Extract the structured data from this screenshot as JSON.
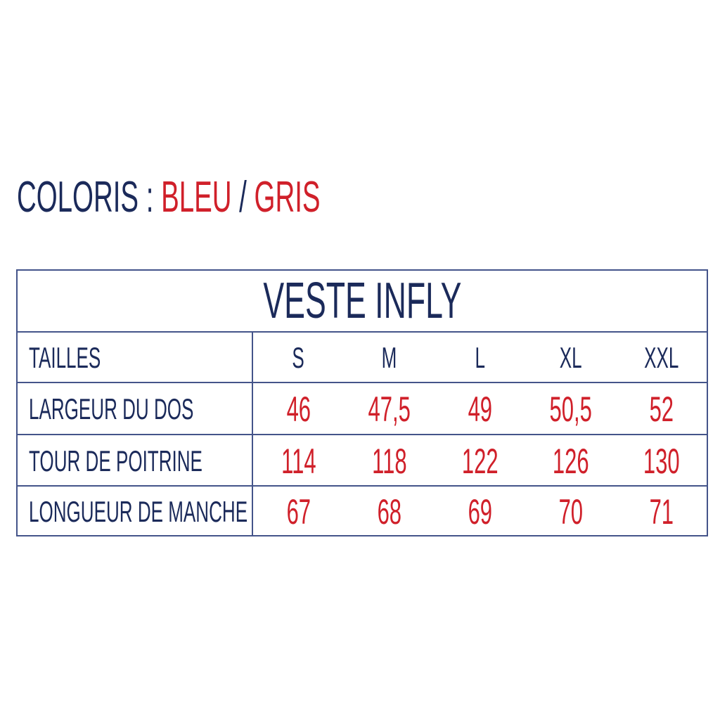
{
  "header": {
    "label": "COLORIS :",
    "color1": "BLEU",
    "separator": "/",
    "color2": "GRIS"
  },
  "table": {
    "title": "VESTE INFLY",
    "header_label": "TAILLES",
    "sizes": [
      "S",
      "M",
      "L",
      "XL",
      "XXL"
    ],
    "rows": [
      {
        "label": "LARGEUR DU DOS",
        "values": [
          "46",
          "47,5",
          "49",
          "50,5",
          "52"
        ]
      },
      {
        "label": "TOUR DE POITRINE",
        "values": [
          "114",
          "118",
          "122",
          "126",
          "130"
        ]
      },
      {
        "label": "LONGUEUR DE MANCHE",
        "values": [
          "67",
          "68",
          "69",
          "70",
          "71"
        ]
      }
    ]
  },
  "colors": {
    "navy": "#1b2a5a",
    "red": "#d0202a",
    "border": "#44548a"
  }
}
